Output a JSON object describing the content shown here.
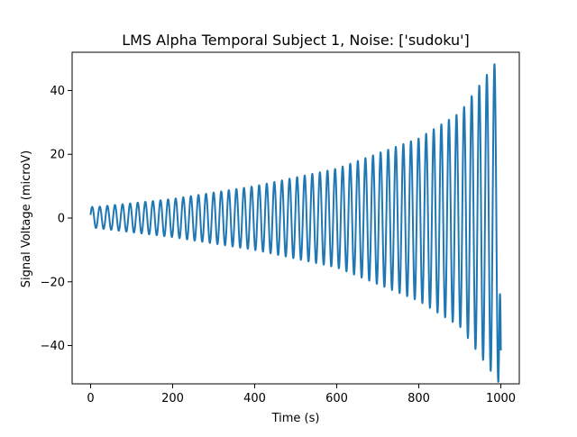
{
  "chart_data": {
    "type": "line",
    "title": "LMS Alpha Temporal Subject 1, Noise: ['sudoku']",
    "xlabel": "Time (s)",
    "ylabel": "Signal Voltage (microV)",
    "xlim": [
      -45,
      1045
    ],
    "ylim": [
      -52,
      52
    ],
    "xticks": [
      0,
      200,
      400,
      600,
      800,
      1000
    ],
    "yticks": [
      -40,
      -20,
      0,
      20,
      40
    ],
    "xtick_labels": [
      "0",
      "200",
      "400",
      "600",
      "800",
      "1000"
    ],
    "ytick_labels": [
      "−40",
      "−20",
      "0",
      "20",
      "40"
    ],
    "grid": false,
    "legend": "none",
    "series": [
      {
        "color": "#1f77b4",
        "x_start": 0,
        "x_end": 1000,
        "initial_value": 1.0,
        "final_value": -41.5,
        "period": 18.5,
        "peaks": [
          {
            "x": 15,
            "y": 3.5
          },
          {
            "x": 200,
            "y": 6.0
          },
          {
            "x": 400,
            "y": 10.0
          },
          {
            "x": 600,
            "y": 15.5
          },
          {
            "x": 800,
            "y": 25.0
          },
          {
            "x": 900,
            "y": 33.0
          },
          {
            "x": 980,
            "y": 47.5
          }
        ],
        "troughs": [
          {
            "x": 5,
            "y": -3.0
          },
          {
            "x": 200,
            "y": -6.0
          },
          {
            "x": 400,
            "y": -10.0
          },
          {
            "x": 600,
            "y": -15.5
          },
          {
            "x": 800,
            "y": -26.0
          },
          {
            "x": 900,
            "y": -34.0
          },
          {
            "x": 970,
            "y": -47.0
          }
        ]
      }
    ]
  }
}
